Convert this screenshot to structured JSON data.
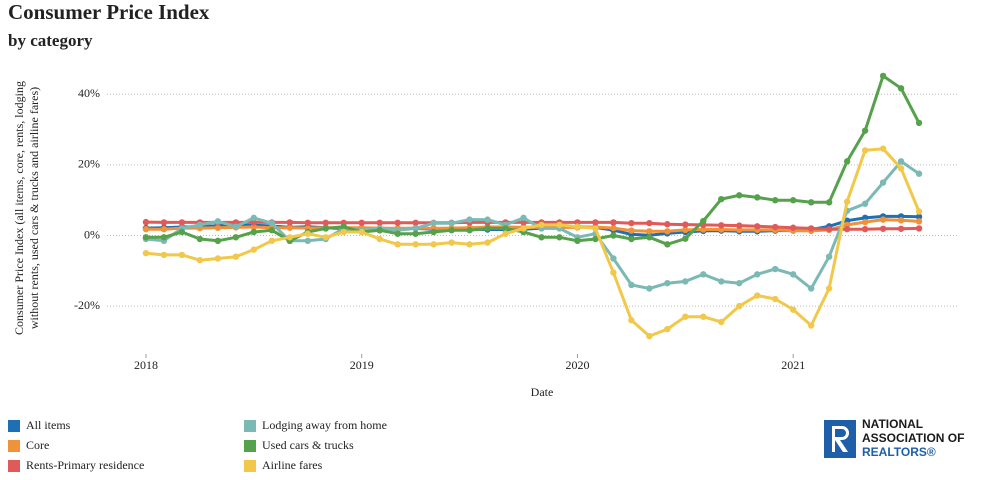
{
  "chart_data": {
    "type": "line",
    "title": "Consumer Price Index",
    "subtitle": "by category",
    "y_label": [
      "Consumer Price Index (all items, core, rents, lodging",
      "without rents, used cars & trucks and airline fares)"
    ],
    "x_label": "Date",
    "logo": [
      "NATIONAL",
      "ASSOCIATION OF",
      "REALTORS®"
    ],
    "x": [
      "2018-01",
      "2018-02",
      "2018-03",
      "2018-04",
      "2018-05",
      "2018-06",
      "2018-07",
      "2018-08",
      "2018-09",
      "2018-10",
      "2018-11",
      "2018-12",
      "2019-01",
      "2019-02",
      "2019-03",
      "2019-04",
      "2019-05",
      "2019-06",
      "2019-07",
      "2019-08",
      "2019-09",
      "2019-10",
      "2019-11",
      "2019-12",
      "2020-01",
      "2020-02",
      "2020-03",
      "2020-04",
      "2020-05",
      "2020-06",
      "2020-07",
      "2020-08",
      "2020-09",
      "2020-10",
      "2020-11",
      "2020-12",
      "2021-01",
      "2021-02",
      "2021-03",
      "2021-04",
      "2021-05",
      "2021-06",
      "2021-07",
      "2021-08"
    ],
    "xlim": [
      "2017-11",
      "2021-10"
    ],
    "xticks": [
      {
        "value": "2018-01",
        "label": "2018"
      },
      {
        "value": "2019-01",
        "label": "2019"
      },
      {
        "value": "2020-01",
        "label": "2020"
      },
      {
        "value": "2021-01",
        "label": "2021"
      }
    ],
    "ylim": [
      -33,
      50
    ],
    "yticks": [
      {
        "value": -20,
        "label": "-20%"
      },
      {
        "value": 0,
        "label": "0%"
      },
      {
        "value": 20,
        "label": "20%"
      },
      {
        "value": 40,
        "label": "40%"
      }
    ],
    "grid": true,
    "legend": "bottom",
    "series": [
      {
        "name": "All items",
        "color": "#1f6fb4",
        "values": [
          2.1,
          2.2,
          2.4,
          2.5,
          2.8,
          2.9,
          2.9,
          2.7,
          2.3,
          2.5,
          2.2,
          1.9,
          1.6,
          1.5,
          1.9,
          2.0,
          1.8,
          1.6,
          1.8,
          1.7,
          1.7,
          1.8,
          2.1,
          2.3,
          2.5,
          2.3,
          1.5,
          0.3,
          0.1,
          0.6,
          1.0,
          1.3,
          1.4,
          1.2,
          1.2,
          1.4,
          1.4,
          1.7,
          2.6,
          4.2,
          5.0,
          5.4,
          5.4,
          5.3
        ]
      },
      {
        "name": "Core",
        "color": "#f0923a",
        "values": [
          1.8,
          1.8,
          2.1,
          2.1,
          2.2,
          2.3,
          2.4,
          2.2,
          2.2,
          2.1,
          2.2,
          2.2,
          2.2,
          2.1,
          2.0,
          2.1,
          2.0,
          2.1,
          2.2,
          2.4,
          2.4,
          2.3,
          2.3,
          2.3,
          2.3,
          2.4,
          2.1,
          1.4,
          1.2,
          1.2,
          1.6,
          1.7,
          1.7,
          1.6,
          1.6,
          1.6,
          1.4,
          1.3,
          1.6,
          3.0,
          3.8,
          4.5,
          4.3,
          4.0
        ]
      },
      {
        "name": "Rents-Primary residence",
        "color": "#e05a5a",
        "values": [
          3.8,
          3.7,
          3.7,
          3.7,
          3.7,
          3.7,
          3.7,
          3.7,
          3.7,
          3.6,
          3.6,
          3.6,
          3.6,
          3.6,
          3.6,
          3.6,
          3.6,
          3.6,
          3.7,
          3.7,
          3.7,
          3.7,
          3.7,
          3.7,
          3.7,
          3.7,
          3.7,
          3.5,
          3.5,
          3.2,
          3.1,
          3.0,
          2.9,
          2.8,
          2.6,
          2.4,
          2.2,
          2.0,
          1.8,
          1.8,
          1.8,
          1.9,
          1.9,
          2.0
        ]
      },
      {
        "name": "Lodging away from home",
        "color": "#7bb9b5",
        "values": [
          -1.0,
          -1.5,
          2.0,
          3.0,
          4.0,
          2.5,
          5.0,
          3.5,
          -1.5,
          -1.5,
          -1.0,
          2.0,
          1.5,
          2.0,
          1.5,
          2.0,
          3.5,
          3.5,
          4.5,
          4.5,
          3.0,
          5.0,
          2.0,
          2.0,
          -0.5,
          0.5,
          -6.5,
          -14.0,
          -15.0,
          -13.5,
          -13.0,
          -11.0,
          -13.0,
          -13.5,
          -11.0,
          -9.5,
          -11.0,
          -15.0,
          -6.0,
          7.0,
          9.0,
          15.0,
          21.0,
          17.5
        ]
      },
      {
        "name": "Used cars & trucks",
        "color": "#56a14b",
        "values": [
          -0.5,
          -0.5,
          1.0,
          -1.0,
          -1.5,
          -0.5,
          1.0,
          1.5,
          -1.5,
          1.0,
          2.0,
          2.5,
          1.0,
          1.5,
          0.5,
          0.5,
          1.0,
          1.5,
          1.5,
          2.0,
          2.0,
          1.0,
          -0.5,
          -0.5,
          -1.5,
          -1.0,
          0.0,
          -1.0,
          -0.5,
          -2.5,
          -0.9,
          4.1,
          10.3,
          11.4,
          10.8,
          10.0,
          10.0,
          9.4,
          9.4,
          21.0,
          29.7,
          45.2,
          41.7,
          31.9
        ]
      },
      {
        "name": "Airline fares",
        "color": "#f1c84a",
        "values": [
          -5.0,
          -5.5,
          -5.5,
          -7.0,
          -6.5,
          -6.0,
          -4.0,
          -1.5,
          -0.5,
          0.5,
          -0.5,
          1.0,
          1.0,
          -1.0,
          -2.5,
          -2.5,
          -2.5,
          -2.0,
          -2.5,
          -2.0,
          0.5,
          2.0,
          3.0,
          3.0,
          2.5,
          2.0,
          -10.5,
          -24.0,
          -28.5,
          -26.5,
          -23.0,
          -23.0,
          -24.5,
          -20.0,
          -17.0,
          -18.0,
          -21.0,
          -25.5,
          -15.0,
          9.6,
          24.1,
          24.6,
          19.0,
          6.8
        ]
      }
    ]
  }
}
